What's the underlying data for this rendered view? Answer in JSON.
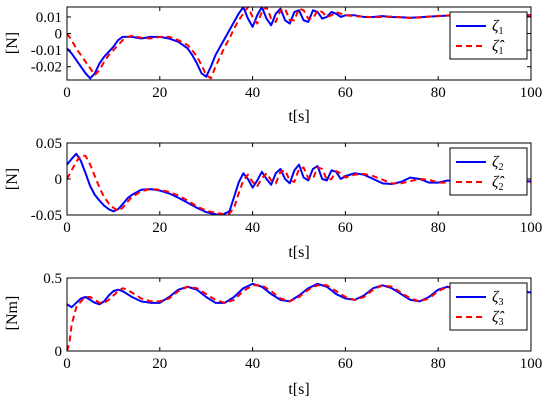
{
  "chart_data": [
    {
      "type": "line",
      "xlabel": "t[s]",
      "ylabel": "[N]",
      "xlim": [
        0,
        100
      ],
      "ylim": [
        -0.028,
        0.016
      ],
      "xticks": [
        0,
        20,
        40,
        60,
        80,
        100
      ],
      "xtick_labels": [
        "0",
        "20",
        "40",
        "60",
        "80",
        "100"
      ],
      "yticks": [
        0.01,
        0,
        -0.01,
        -0.02
      ],
      "ytick_labels": [
        "0.01",
        "0",
        "-0.01",
        "-0.02"
      ],
      "grid": false,
      "legend_position": "top-right",
      "series": [
        {
          "name": "ζ1",
          "legend_symbol": "ζ",
          "legend_sub": "1",
          "color": "#0000ff",
          "style": "solid",
          "x": [
            0,
            1,
            2,
            3,
            4,
            5,
            6,
            7,
            8,
            9,
            10,
            11,
            12,
            14,
            16,
            18,
            20,
            22,
            24,
            26,
            27,
            28,
            29,
            30,
            31,
            32,
            33,
            34,
            35,
            36,
            37,
            38,
            39,
            40,
            41,
            42,
            43,
            44,
            45,
            46,
            47,
            48,
            49,
            50,
            51,
            52,
            53,
            54,
            55,
            56,
            57,
            58,
            59,
            60,
            62,
            64,
            66,
            68,
            70,
            72,
            74,
            76,
            78,
            80,
            82,
            84,
            86,
            88,
            90,
            92,
            94,
            96,
            98,
            100
          ],
          "y": [
            -0.009,
            -0.012,
            -0.016,
            -0.02,
            -0.024,
            -0.027,
            -0.024,
            -0.018,
            -0.014,
            -0.011,
            -0.008,
            -0.004,
            -0.002,
            -0.002,
            -0.003,
            -0.002,
            -0.002,
            -0.003,
            -0.005,
            -0.009,
            -0.013,
            -0.018,
            -0.024,
            -0.026,
            -0.02,
            -0.013,
            -0.008,
            -0.003,
            0.002,
            0.007,
            0.012,
            0.016,
            0.009,
            0.004,
            0.011,
            0.016,
            0.009,
            0.005,
            0.012,
            0.015,
            0.008,
            0.006,
            0.013,
            0.014,
            0.008,
            0.007,
            0.014,
            0.013,
            0.009,
            0.01,
            0.013,
            0.012,
            0.01,
            0.011,
            0.011,
            0.01,
            0.01,
            0.0105,
            0.01,
            0.0098,
            0.0095,
            0.0098,
            0.0102,
            0.0105,
            0.0108,
            0.011,
            0.011,
            0.0108,
            0.0105,
            0.0107,
            0.0109,
            0.011,
            0.0112,
            0.011
          ]
        },
        {
          "name": "ζ̂1",
          "legend_symbol": "ζ̂",
          "legend_sub": "1",
          "color": "#ff0000",
          "style": "dashed",
          "x": [
            0,
            1,
            2,
            3,
            4,
            5,
            6,
            7,
            8,
            9,
            10,
            11,
            12,
            13,
            14,
            16,
            18,
            20,
            22,
            24,
            26,
            27,
            28,
            29,
            30,
            31,
            32,
            33,
            34,
            35,
            36,
            37,
            38,
            39,
            40,
            41,
            42,
            43,
            44,
            45,
            46,
            47,
            48,
            49,
            50,
            51,
            52,
            53,
            54,
            55,
            56,
            57,
            58,
            59,
            60,
            62,
            64,
            66,
            68,
            70,
            72,
            74,
            76,
            78,
            80,
            82,
            84,
            86,
            88,
            90,
            92,
            94,
            96,
            98,
            100
          ],
          "y": [
            0,
            -0.004,
            -0.009,
            -0.013,
            -0.017,
            -0.021,
            -0.025,
            -0.022,
            -0.017,
            -0.013,
            -0.01,
            -0.007,
            -0.004,
            -0.002,
            -0.0015,
            -0.0025,
            -0.003,
            -0.002,
            -0.002,
            -0.004,
            -0.007,
            -0.01,
            -0.014,
            -0.019,
            -0.025,
            -0.027,
            -0.02,
            -0.014,
            -0.008,
            -0.003,
            0.003,
            0.008,
            0.012,
            0.016,
            0.01,
            0.006,
            0.013,
            0.016,
            0.009,
            0.007,
            0.014,
            0.015,
            0.008,
            0.008,
            0.015,
            0.014,
            0.009,
            0.009,
            0.014,
            0.013,
            0.01,
            0.011,
            0.013,
            0.012,
            0.011,
            0.0105,
            0.0102,
            0.0098,
            0.01,
            0.0102,
            0.0098,
            0.0094,
            0.0097,
            0.0102,
            0.0106,
            0.0109,
            0.0111,
            0.0108,
            0.0105,
            0.0106,
            0.0109,
            0.0111,
            0.0113,
            0.0111,
            0.0108
          ]
        }
      ]
    },
    {
      "type": "line",
      "xlabel": "t[s]",
      "ylabel": "[N]",
      "xlim": [
        0,
        100
      ],
      "ylim": [
        -0.05,
        0.05
      ],
      "xticks": [
        0,
        20,
        40,
        60,
        80,
        100
      ],
      "xtick_labels": [
        "0",
        "20",
        "40",
        "60",
        "80",
        "100"
      ],
      "yticks": [
        0.05,
        0,
        -0.05
      ],
      "ytick_labels": [
        "0.05",
        "0",
        "-0.05"
      ],
      "grid": false,
      "legend_position": "top-right",
      "series": [
        {
          "name": "ζ2",
          "legend_symbol": "ζ",
          "legend_sub": "2",
          "color": "#0000ff",
          "style": "solid",
          "x": [
            0,
            1,
            2,
            3,
            4,
            5,
            6,
            7,
            8,
            9,
            10,
            11,
            12,
            13,
            14,
            16,
            18,
            20,
            22,
            24,
            26,
            28,
            30,
            32,
            33,
            34,
            35,
            36,
            37,
            38,
            39,
            40,
            41,
            42,
            43,
            44,
            45,
            46,
            47,
            48,
            49,
            50,
            51,
            52,
            53,
            54,
            55,
            56,
            57,
            58,
            59,
            60,
            62,
            64,
            66,
            68,
            70,
            72,
            74,
            76,
            78,
            80,
            82,
            84,
            86,
            88,
            90,
            92,
            94,
            96,
            98,
            100
          ],
          "y": [
            0.02,
            0.028,
            0.035,
            0.025,
            0.008,
            -0.01,
            -0.022,
            -0.03,
            -0.037,
            -0.042,
            -0.045,
            -0.042,
            -0.035,
            -0.027,
            -0.022,
            -0.015,
            -0.014,
            -0.016,
            -0.02,
            -0.026,
            -0.033,
            -0.04,
            -0.046,
            -0.049,
            -0.05,
            -0.048,
            -0.045,
            -0.025,
            -0.005,
            0.008,
            0.0,
            -0.012,
            -0.002,
            0.01,
            0.0,
            -0.008,
            0.008,
            0.014,
            0.0,
            -0.006,
            0.012,
            0.02,
            0.002,
            -0.002,
            0.014,
            0.018,
            0.0,
            -0.002,
            0.012,
            0.01,
            0.0,
            0.004,
            0.008,
            0.006,
            0.0,
            -0.006,
            -0.007,
            -0.004,
            0.002,
            0.0,
            -0.005,
            -0.005,
            -0.002,
            -0.004,
            -0.007,
            -0.006,
            -0.002,
            -0.0015,
            -0.005,
            -0.006,
            -0.004,
            -0.003
          ]
        },
        {
          "name": "ζ̂2",
          "legend_symbol": "ζ̂",
          "legend_sub": "2",
          "color": "#ff0000",
          "style": "dashed",
          "x": [
            0,
            1,
            2,
            3,
            4,
            5,
            6,
            7,
            8,
            9,
            10,
            11,
            12,
            13,
            14,
            16,
            18,
            20,
            22,
            24,
            26,
            28,
            30,
            32,
            34,
            35,
            36,
            37,
            38,
            39,
            40,
            41,
            42,
            43,
            44,
            45,
            46,
            47,
            48,
            49,
            50,
            51,
            52,
            53,
            54,
            55,
            56,
            57,
            58,
            59,
            60,
            62,
            64,
            66,
            68,
            70,
            72,
            74,
            76,
            78,
            80,
            82,
            84,
            86,
            88,
            90,
            92,
            94,
            96,
            98,
            100
          ],
          "y": [
            0,
            0.012,
            0.024,
            0.033,
            0.032,
            0.02,
            0.004,
            -0.012,
            -0.025,
            -0.034,
            -0.04,
            -0.044,
            -0.04,
            -0.032,
            -0.025,
            -0.017,
            -0.014,
            -0.015,
            -0.018,
            -0.023,
            -0.03,
            -0.038,
            -0.044,
            -0.047,
            -0.049,
            -0.048,
            -0.04,
            -0.02,
            -0.002,
            0.006,
            -0.004,
            -0.01,
            0.001,
            0.008,
            -0.002,
            -0.006,
            0.01,
            0.012,
            -0.002,
            -0.004,
            0.014,
            0.016,
            0.001,
            0.0,
            0.016,
            0.014,
            -0.001,
            0.0,
            0.011,
            0.008,
            0.002,
            0.006,
            0.007,
            0.004,
            -0.001,
            -0.006,
            -0.006,
            -0.003,
            0.0,
            -0.001,
            -0.005,
            -0.005,
            -0.003,
            -0.004,
            -0.006,
            -0.005,
            -0.003,
            -0.003,
            -0.005,
            -0.005,
            -0.004
          ]
        }
      ]
    },
    {
      "type": "line",
      "xlabel": "t[s]",
      "ylabel": "[Nm]",
      "xlim": [
        0,
        100
      ],
      "ylim": [
        0,
        0.5
      ],
      "xticks": [
        0,
        20,
        40,
        60,
        80,
        100
      ],
      "xtick_labels": [
        "0",
        "20",
        "40",
        "60",
        "80",
        "100"
      ],
      "yticks": [
        0.5,
        0
      ],
      "ytick_labels": [
        "0.5",
        "0"
      ],
      "grid": false,
      "legend_position": "top-right",
      "series": [
        {
          "name": "ζ3",
          "legend_symbol": "ζ",
          "legend_sub": "3",
          "color": "#0000ff",
          "style": "solid",
          "x": [
            0,
            1,
            2,
            3,
            4,
            5,
            6,
            7,
            8,
            9,
            10,
            11,
            12,
            13,
            14,
            16,
            18,
            20,
            22,
            24,
            26,
            28,
            30,
            32,
            34,
            36,
            38,
            40,
            42,
            44,
            46,
            48,
            50,
            52,
            54,
            56,
            58,
            60,
            62,
            64,
            66,
            68,
            70,
            72,
            74,
            76,
            78,
            80,
            82,
            84,
            86,
            88,
            90,
            92,
            94,
            96,
            98,
            100
          ],
          "y": [
            0.32,
            0.3,
            0.33,
            0.36,
            0.37,
            0.35,
            0.33,
            0.32,
            0.34,
            0.38,
            0.41,
            0.42,
            0.41,
            0.39,
            0.37,
            0.34,
            0.33,
            0.33,
            0.37,
            0.42,
            0.44,
            0.42,
            0.37,
            0.33,
            0.33,
            0.37,
            0.43,
            0.46,
            0.44,
            0.39,
            0.35,
            0.34,
            0.38,
            0.43,
            0.46,
            0.44,
            0.39,
            0.36,
            0.35,
            0.38,
            0.43,
            0.45,
            0.43,
            0.39,
            0.35,
            0.34,
            0.37,
            0.42,
            0.44,
            0.42,
            0.37,
            0.34,
            0.33,
            0.36,
            0.41,
            0.42,
            0.41,
            0.4
          ]
        },
        {
          "name": "ζ̂3",
          "legend_symbol": "ζ̂",
          "legend_sub": "3",
          "color": "#ff0000",
          "style": "dashed",
          "x": [
            0,
            0.5,
            1,
            2,
            3,
            4,
            5,
            6,
            7,
            8,
            9,
            10,
            11,
            12,
            13,
            14,
            16,
            18,
            20,
            22,
            24,
            26,
            28,
            30,
            32,
            34,
            36,
            38,
            40,
            42,
            44,
            46,
            48,
            50,
            52,
            54,
            56,
            58,
            60,
            62,
            64,
            66,
            68,
            70,
            72,
            74,
            76,
            78,
            80,
            82,
            84,
            86,
            88,
            90,
            92,
            94,
            96,
            98,
            100
          ],
          "y": [
            0,
            0.05,
            0.18,
            0.3,
            0.34,
            0.37,
            0.37,
            0.35,
            0.33,
            0.33,
            0.35,
            0.38,
            0.41,
            0.43,
            0.42,
            0.4,
            0.36,
            0.34,
            0.34,
            0.36,
            0.41,
            0.44,
            0.43,
            0.39,
            0.35,
            0.33,
            0.35,
            0.41,
            0.45,
            0.45,
            0.41,
            0.36,
            0.34,
            0.37,
            0.42,
            0.45,
            0.45,
            0.41,
            0.37,
            0.35,
            0.37,
            0.42,
            0.45,
            0.44,
            0.4,
            0.36,
            0.34,
            0.36,
            0.41,
            0.44,
            0.43,
            0.39,
            0.35,
            0.33,
            0.35,
            0.4,
            0.42,
            0.42,
            0.41
          ]
        }
      ]
    }
  ]
}
